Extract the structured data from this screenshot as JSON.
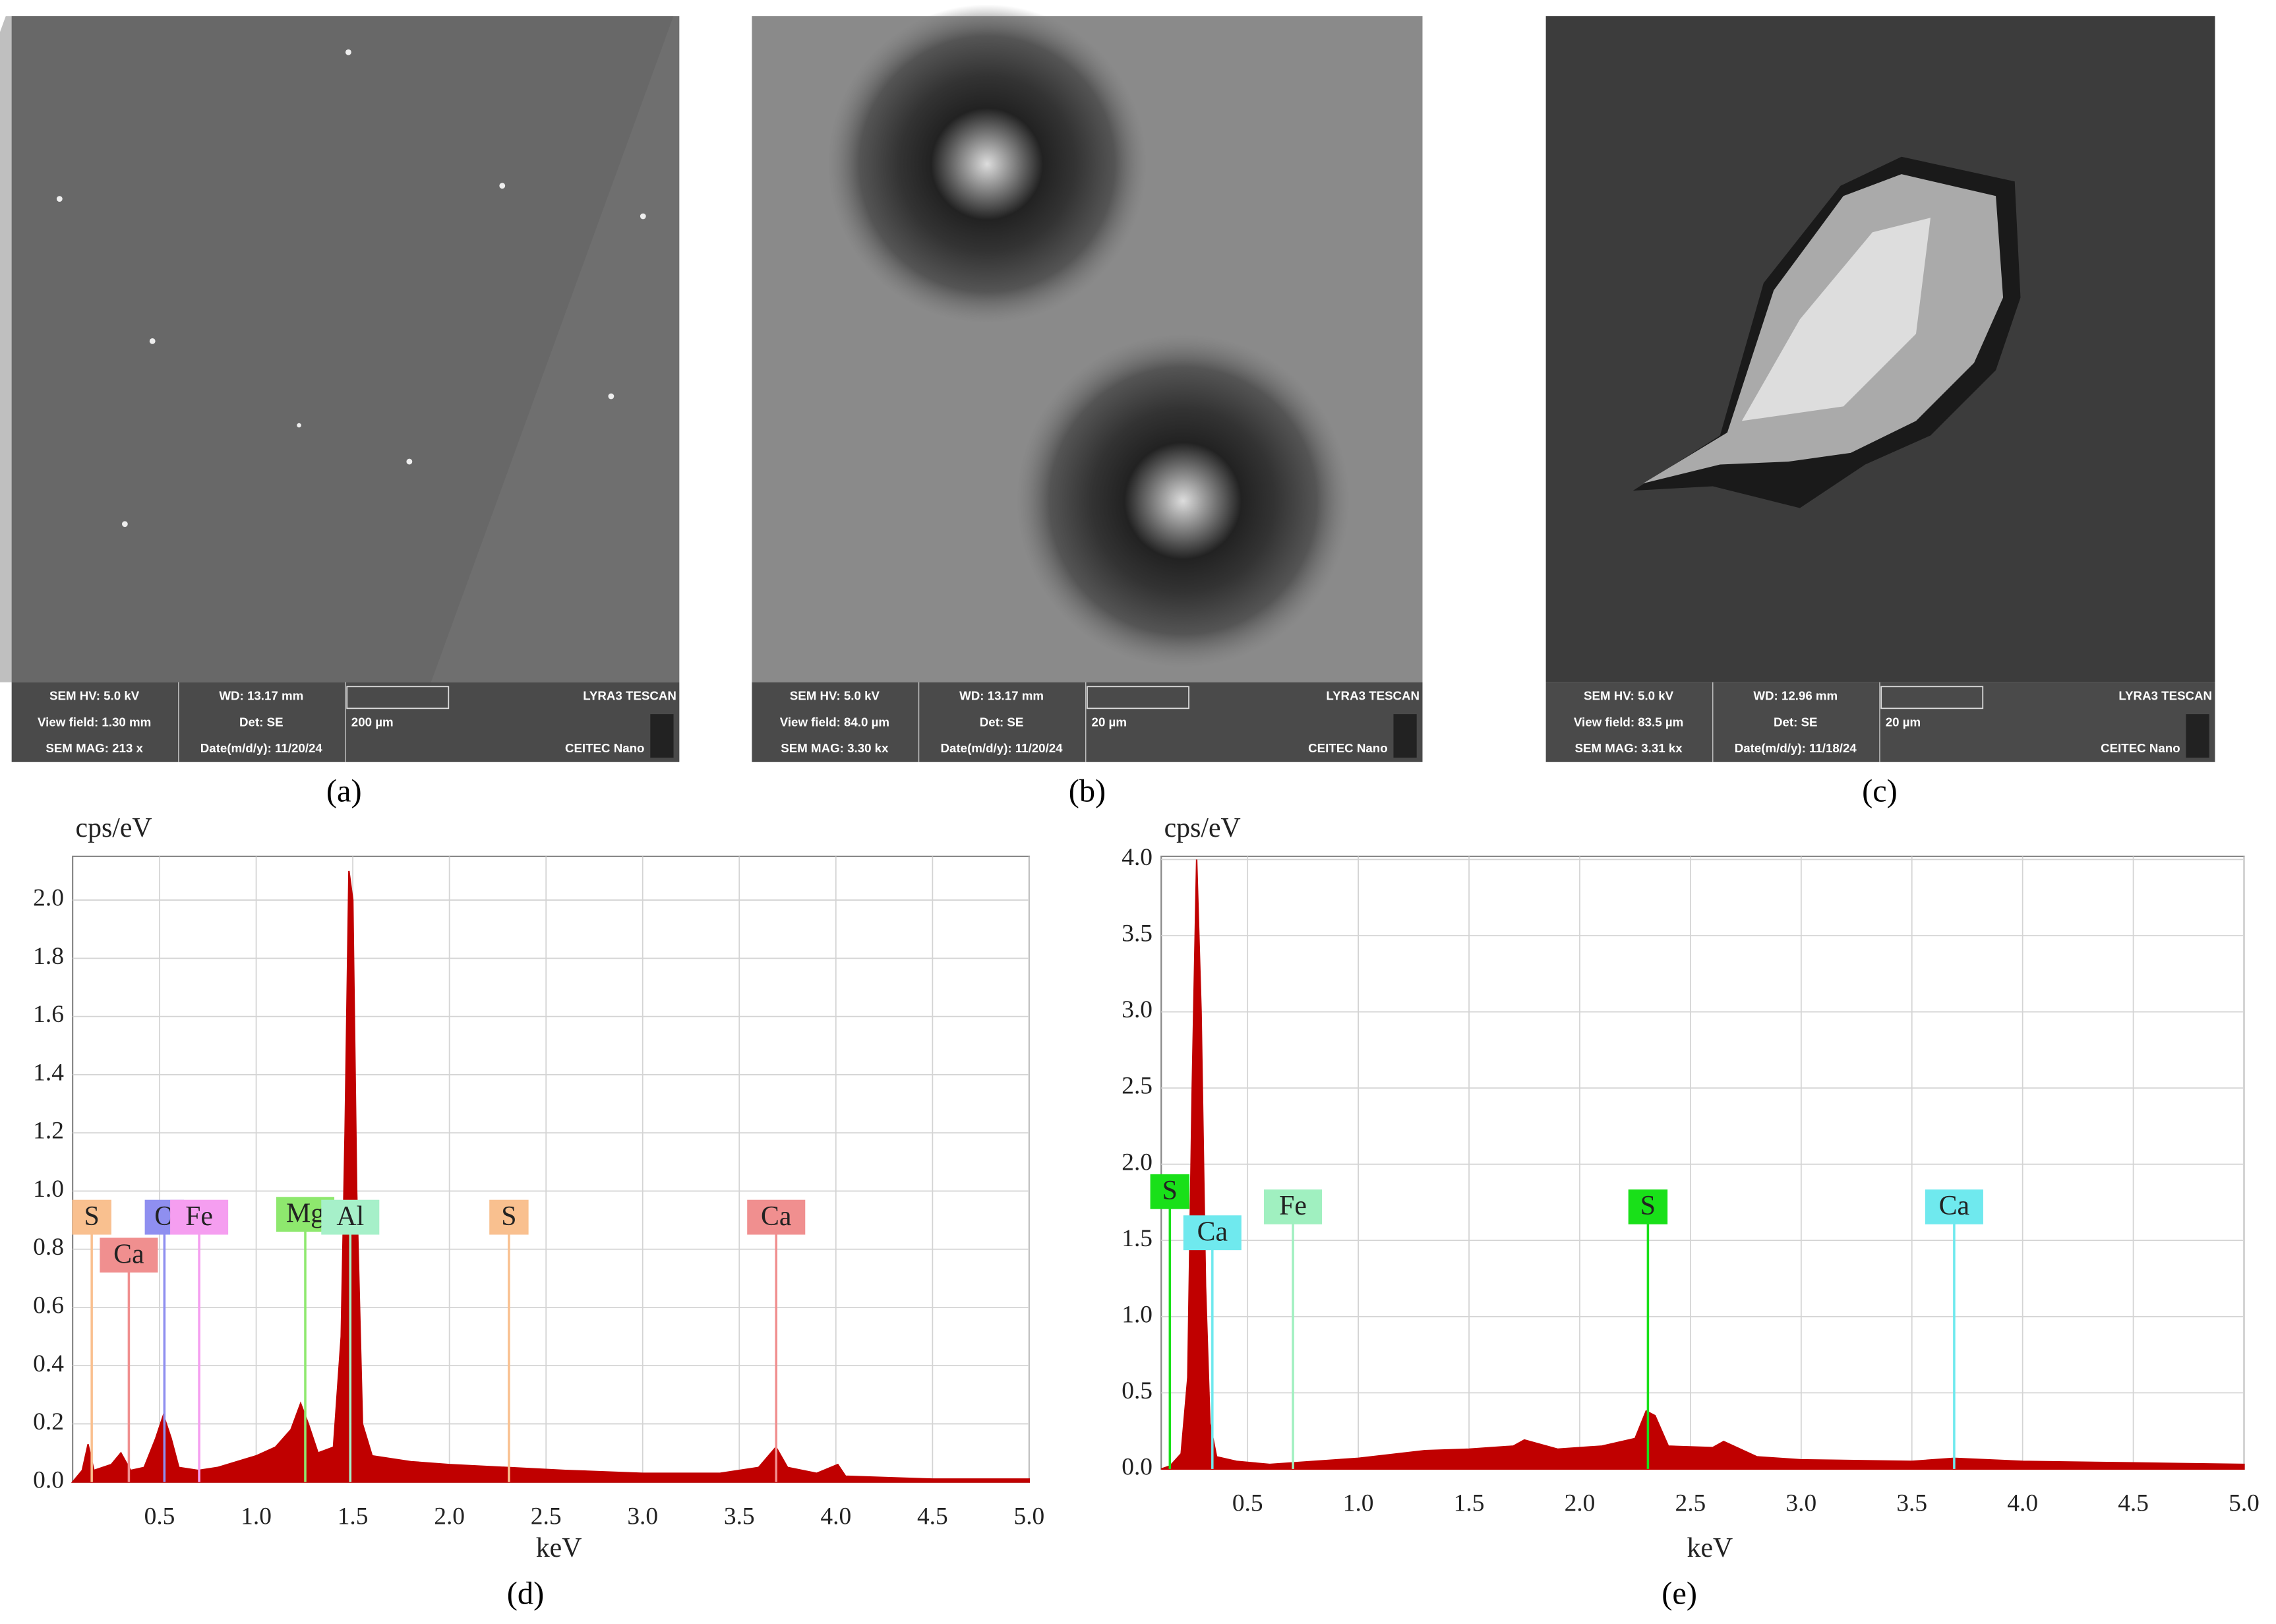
{
  "panels": [
    {
      "label": "(a)",
      "info": [
        [
          "SEM HV: 5.0 kV",
          "WD: 13.17 mm",
          "LYRA3 TESCAN"
        ],
        [
          "View field: 1.30 mm",
          "Det: SE",
          "200 µm"
        ],
        [
          "SEM MAG: 213 x",
          "Date(m/d/y): 11/20/24",
          "CEITEC Nano"
        ]
      ]
    },
    {
      "label": "(b)",
      "info": [
        [
          "SEM HV: 5.0 kV",
          "WD: 13.17 mm",
          "LYRA3 TESCAN"
        ],
        [
          "View field: 84.0 µm",
          "Det: SE",
          "20 µm"
        ],
        [
          "SEM MAG: 3.30 kx",
          "Date(m/d/y): 11/20/24",
          "CEITEC Nano"
        ]
      ]
    },
    {
      "label": "(c)",
      "info": [
        [
          "SEM HV: 5.0 kV",
          "WD: 12.96 mm",
          "LYRA3 TESCAN"
        ],
        [
          "View field: 83.5 µm",
          "Det: SE",
          "20 µm"
        ],
        [
          "SEM MAG: 3.31 kx",
          "Date(m/d/y): 11/18/24",
          "CEITEC Nano"
        ]
      ]
    }
  ],
  "chart_data": [
    {
      "type": "area",
      "panel_label": "(d)",
      "y_label": "cps/eV",
      "x_label": "keV",
      "color": "#c00000",
      "grid": true,
      "x": [
        0.05,
        0.1,
        0.13,
        0.16,
        0.25,
        0.3,
        0.35,
        0.42,
        0.48,
        0.52,
        0.56,
        0.6,
        0.7,
        0.8,
        0.9,
        1.0,
        1.1,
        1.18,
        1.23,
        1.27,
        1.32,
        1.4,
        1.44,
        1.46,
        1.48,
        1.5,
        1.52,
        1.55,
        1.6,
        1.8,
        2.0,
        2.3,
        2.6,
        3.0,
        3.4,
        3.6,
        3.69,
        3.75,
        3.9,
        4.01,
        4.05,
        4.5,
        5.0
      ],
      "values": [
        0,
        0.04,
        0.13,
        0.04,
        0.06,
        0.1,
        0.04,
        0.05,
        0.15,
        0.23,
        0.15,
        0.05,
        0.04,
        0.05,
        0.07,
        0.09,
        0.12,
        0.18,
        0.27,
        0.2,
        0.1,
        0.12,
        0.5,
        1.2,
        2.1,
        2.0,
        1.0,
        0.2,
        0.09,
        0.07,
        0.06,
        0.05,
        0.04,
        0.03,
        0.03,
        0.05,
        0.12,
        0.05,
        0.03,
        0.06,
        0.02,
        0.01,
        0.01
      ],
      "xlim": [
        0.05,
        5.0
      ],
      "ylim": [
        0,
        2.15
      ],
      "xticks": [
        0.5,
        {
          "value": 1,
          "label": "1.0"
        },
        1.5,
        {
          "value": 2,
          "label": "2.0"
        },
        2.5,
        {
          "value": 3,
          "label": "3.0"
        },
        3.5,
        {
          "value": 4,
          "label": "4.0"
        },
        4.5,
        {
          "value": 5,
          "label": "5.0"
        }
      ],
      "yticks": [
        {
          "value": 0,
          "label": "0.0"
        },
        0.2,
        0.4,
        0.6,
        0.8,
        {
          "value": 1,
          "label": "1.0"
        },
        1.2,
        1.4,
        1.6,
        1.8,
        {
          "value": 2,
          "label": "2.0"
        }
      ],
      "markers": [
        {
          "label": "S",
          "x": 0.149,
          "y": 0.91,
          "color": "#f9c08f"
        },
        {
          "label": "Ca",
          "x": 0.341,
          "y": 0.78,
          "color": "#f08f8f"
        },
        {
          "label": "O",
          "x": 0.525,
          "y": 0.91,
          "color": "#8f8ff0"
        },
        {
          "label": "Fe",
          "x": 0.705,
          "y": 0.91,
          "color": "#f59ef0"
        },
        {
          "label": "Mg",
          "x": 1.254,
          "y": 0.92,
          "color": "#8ee86e"
        },
        {
          "label": "Al",
          "x": 1.487,
          "y": 0.91,
          "color": "#a6f0c9"
        },
        {
          "label": "S",
          "x": 2.308,
          "y": 0.91,
          "color": "#f9c08f"
        },
        {
          "label": "Ca",
          "x": 3.691,
          "y": 0.91,
          "color": "#f08f8f"
        }
      ]
    },
    {
      "type": "area",
      "panel_label": "(e)",
      "y_label": "cps/eV",
      "x_label": "keV",
      "color": "#c00000",
      "grid": true,
      "x": [
        0.11,
        0.15,
        0.2,
        0.23,
        0.25,
        0.27,
        0.29,
        0.31,
        0.33,
        0.36,
        0.45,
        0.6,
        0.8,
        1.0,
        1.3,
        1.5,
        1.7,
        1.75,
        1.9,
        2.1,
        2.25,
        2.3,
        2.34,
        2.4,
        2.6,
        2.65,
        2.8,
        3.0,
        3.5,
        3.69,
        4.0,
        4.5,
        5.0
      ],
      "values": [
        0,
        0.02,
        0.1,
        0.6,
        2.5,
        4.0,
        3.0,
        1.2,
        0.3,
        0.08,
        0.05,
        0.03,
        0.05,
        0.07,
        0.12,
        0.13,
        0.15,
        0.19,
        0.13,
        0.15,
        0.2,
        0.38,
        0.35,
        0.15,
        0.14,
        0.18,
        0.08,
        0.06,
        0.05,
        0.07,
        0.05,
        0.04,
        0.03
      ],
      "xlim": [
        0.11,
        5.0
      ],
      "ylim": [
        0,
        4.02
      ],
      "xticks": [
        0.5,
        {
          "value": 1,
          "label": "1.0"
        },
        1.5,
        {
          "value": 2,
          "label": "2.0"
        },
        2.5,
        {
          "value": 3,
          "label": "3.0"
        },
        3.5,
        {
          "value": 4,
          "label": "4.0"
        },
        4.5,
        {
          "value": 5,
          "label": "5.0"
        }
      ],
      "yticks": [
        {
          "value": 0,
          "label": "0.0"
        },
        0.5,
        {
          "value": 1,
          "label": "1.0"
        },
        1.5,
        {
          "value": 2,
          "label": "2.0"
        },
        2.5,
        {
          "value": 3,
          "label": "3.0"
        },
        3.5,
        {
          "value": 4,
          "label": "4.0"
        }
      ],
      "markers": [
        {
          "label": "S",
          "x": 0.149,
          "y": 1.82,
          "color": "#19e019"
        },
        {
          "label": "Ca",
          "x": 0.341,
          "y": 1.55,
          "color": "#6fe9ee"
        },
        {
          "label": "Fe",
          "x": 0.705,
          "y": 1.72,
          "color": "#a0f0c0"
        },
        {
          "label": "S",
          "x": 2.308,
          "y": 1.72,
          "color": "#19e019"
        },
        {
          "label": "Ca",
          "x": 3.691,
          "y": 1.72,
          "color": "#6fe9ee"
        }
      ]
    }
  ]
}
